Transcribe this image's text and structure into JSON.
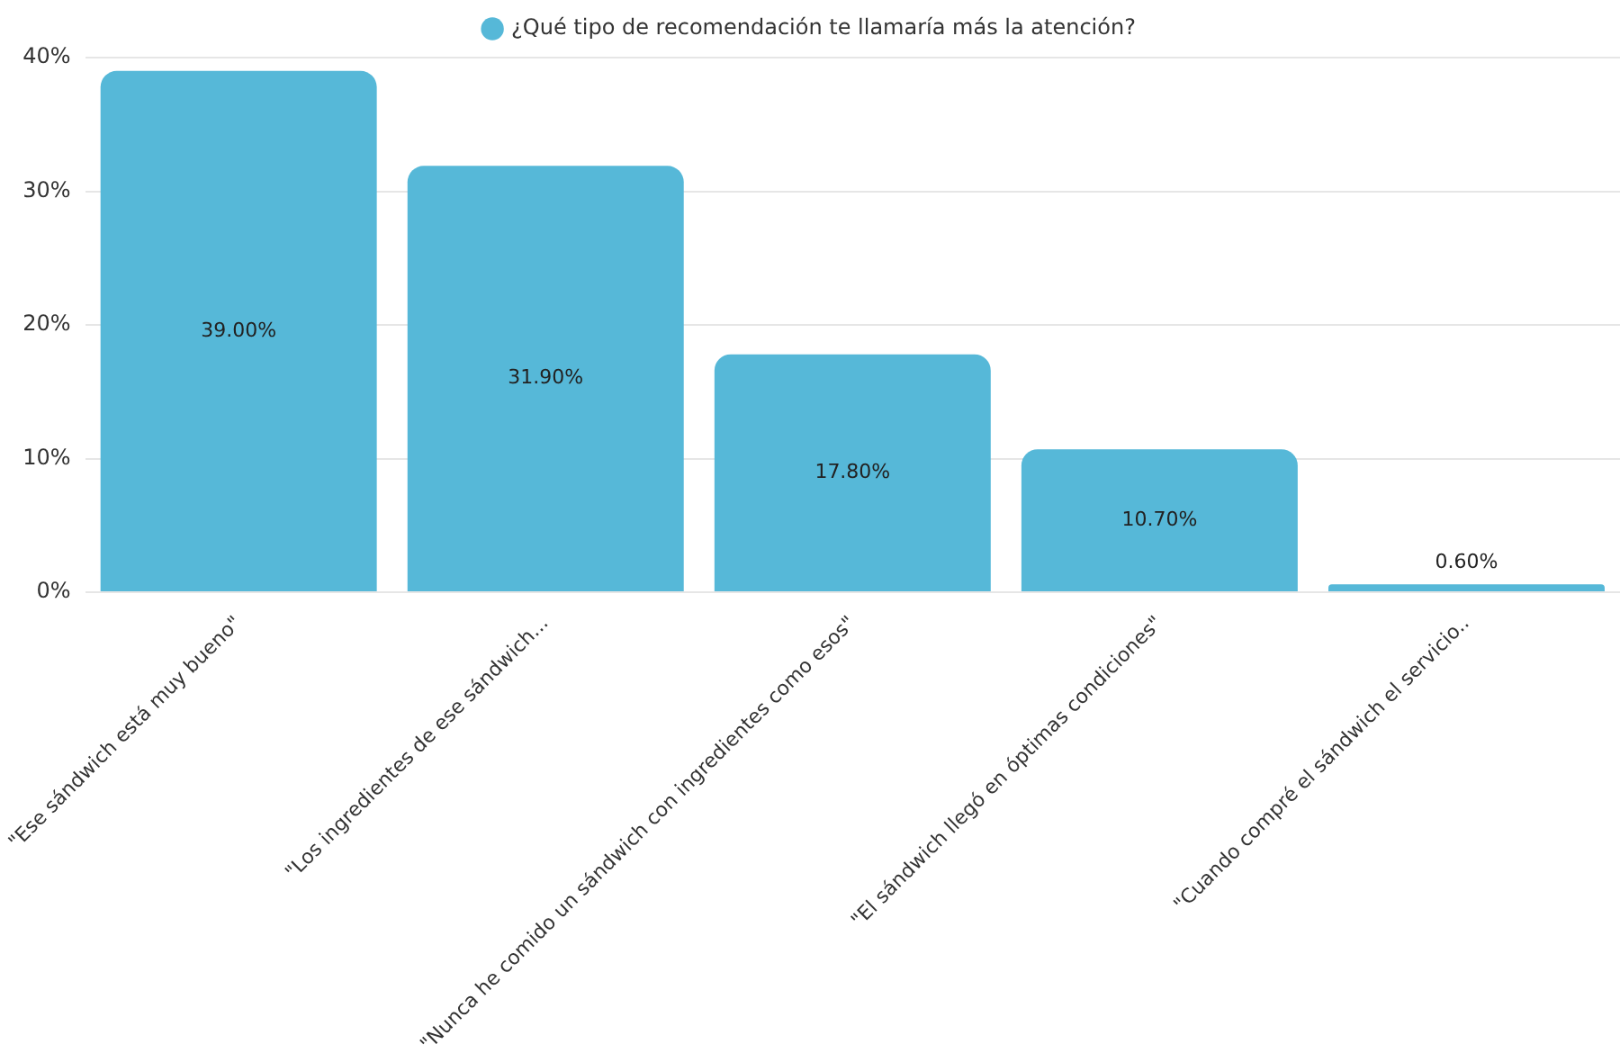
{
  "chart_data": {
    "type": "bar",
    "categories": [
      "\"Ese sándwich está muy bueno\"",
      "\"Los ingredientes de ese sándwich...",
      "\"Nunca he comido un sándwich con ingredientes como esos\"",
      "\"El sándwich llegó en óptimas condiciones\"",
      "\"Cuando compré el sándwich el servicio.."
    ],
    "series": [
      {
        "name": "¿Qué tipo de recomendación te llamaría más la atención?",
        "color": "#56b8d8",
        "values": [
          39.0,
          31.9,
          17.8,
          10.7,
          0.6
        ],
        "value_labels": [
          "39.00%",
          "31.90%",
          "17.80%",
          "10.70%",
          "0.60%"
        ]
      }
    ],
    "ylim": [
      0,
      40
    ],
    "yticks": [
      {
        "value": 0,
        "label": "0%"
      },
      {
        "value": 10,
        "label": "10%"
      },
      {
        "value": 20,
        "label": "20%"
      },
      {
        "value": 30,
        "label": "30%"
      },
      {
        "value": 40,
        "label": "40%"
      }
    ],
    "grid": "y",
    "legend": "top"
  }
}
